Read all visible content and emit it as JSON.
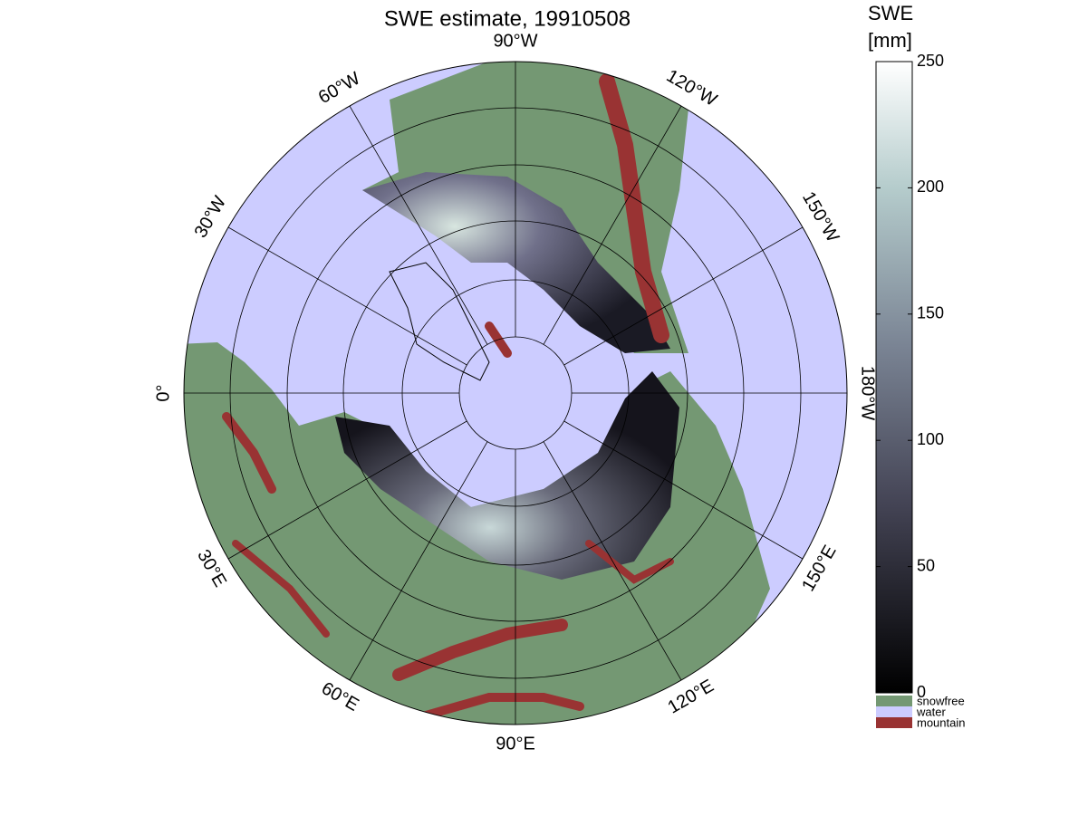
{
  "title": "SWE estimate, 19910508",
  "longitude_labels": [
    "90°W",
    "120°W",
    "150°W",
    "180°W",
    "150°E",
    "120°E",
    "90°E",
    "60°E",
    "30°E",
    "0°",
    "30°W",
    "60°W"
  ],
  "colorbar": {
    "label_lines": [
      "SWE",
      "[mm]"
    ],
    "lim": [
      0,
      250
    ],
    "ticks": [
      0,
      50,
      100,
      150,
      200,
      250
    ],
    "categories": [
      {
        "label": "snowfree",
        "color": "#749873"
      },
      {
        "label": "water",
        "color": "#ccccff"
      },
      {
        "label": "mountain",
        "color": "#993333"
      }
    ]
  }
}
